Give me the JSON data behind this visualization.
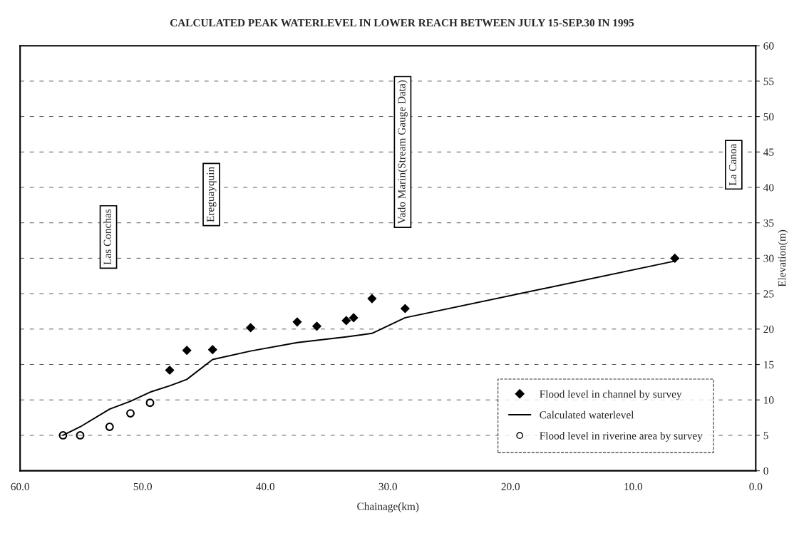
{
  "chart_data": {
    "type": "scatter",
    "title": "CALCULATED PEAK WATERLEVEL IN LOWER REACH BETWEEN JULY 15-SEP.30 IN 1995",
    "xlabel": "Chainage(km)",
    "ylabel": "Elevation(m)",
    "xlim": [
      60,
      0
    ],
    "xticks": [
      {
        "value": 60,
        "label": "60.0"
      },
      {
        "value": 50,
        "label": "50.0"
      },
      {
        "value": 40,
        "label": "40.0"
      },
      {
        "value": 30,
        "label": "30.0"
      },
      {
        "value": 20,
        "label": "20.0"
      },
      {
        "value": 10,
        "label": "10.0"
      },
      {
        "value": 0,
        "label": "0.0"
      }
    ],
    "ylim": [
      0,
      60
    ],
    "yticks": [
      0,
      5,
      10,
      15,
      20,
      25,
      30,
      35,
      40,
      45,
      50,
      55,
      60
    ],
    "grid": "y",
    "legend": "bottom right",
    "series": [
      {
        "name": "Flood level in channel by survey",
        "marker": "diamond",
        "color": "#000000",
        "x": [
          47.8,
          46.4,
          44.3,
          41.2,
          37.4,
          35.8,
          33.4,
          32.8,
          31.3,
          28.6,
          6.6
        ],
        "values": [
          14.2,
          17.0,
          17.1,
          20.2,
          21.0,
          20.4,
          21.2,
          21.6,
          24.3,
          22.9,
          30.0
        ]
      },
      {
        "name": "Calculated waterlevel",
        "type": "line",
        "marker": "none",
        "color": "#000000",
        "x": [
          56.5,
          55.1,
          52.7,
          51.0,
          49.4,
          47.8,
          46.4,
          44.3,
          41.2,
          37.4,
          33.4,
          31.3,
          28.6,
          6.6
        ],
        "values": [
          5.0,
          6.2,
          8.7,
          9.8,
          11.1,
          12.0,
          12.9,
          15.7,
          16.9,
          18.1,
          18.9,
          19.4,
          21.6,
          29.6
        ]
      },
      {
        "name": "Flood level in riverine area by survey",
        "marker": "circle",
        "color": "#000000",
        "x": [
          56.5,
          55.1,
          52.7,
          51.0,
          49.4
        ],
        "values": [
          5.0,
          5.0,
          6.2,
          8.1,
          9.6
        ]
      }
    ],
    "annotations": [
      "Las Conchas",
      "Ereguayquin",
      "Vado Marin(Stream Gauge Data)",
      "La Canoa"
    ]
  }
}
